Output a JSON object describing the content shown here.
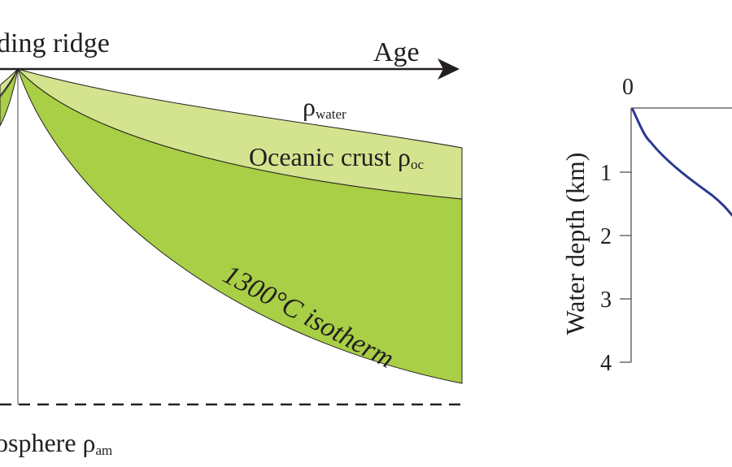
{
  "left_diagram": {
    "ridge_label": "ding ridge",
    "age_label": "Age",
    "water_label_base": "ρ",
    "water_label_sub": "water",
    "crust_label_base": "Oceanic crust ρ",
    "crust_label_sub": "oc",
    "isotherm_label": "1300°C isotherm",
    "asthenosphere_label_base": "osphere ρ",
    "asthenosphere_label_sub": "am",
    "colors": {
      "crust_fill": "#d4e38e",
      "lithosphere_fill": "#a8cf45",
      "outline": "#231f20"
    }
  },
  "depth_plot": {
    "ylabel": "Water depth (km)",
    "x_tick_label": "0",
    "y_tick_labels": [
      "1",
      "2",
      "3",
      "4"
    ],
    "curve_color": "#2b3990"
  }
}
